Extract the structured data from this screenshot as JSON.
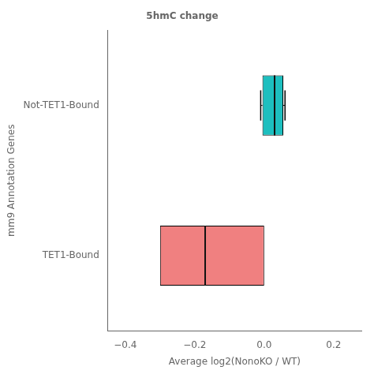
{
  "chart_data": {
    "type": "box",
    "orientation": "horizontal",
    "title": "5hmC change",
    "xlabel": "Average log2(NonoKO / WT)",
    "ylabel": "mm9 Annotation Genes",
    "categories": [
      "TET1-Bound",
      "Not-TET1-Bound"
    ],
    "boxes": [
      {
        "low": -0.3,
        "high": 0.0,
        "median": -0.17,
        "color": "#F08080",
        "median_color": "#111111"
      },
      {
        "low": -0.005,
        "high": 0.055,
        "median": 0.03,
        "whisker_low": -0.01,
        "whisker_high": 0.06,
        "color": "#1DBFBF",
        "median_color": "#111111"
      }
    ],
    "xlim": [
      -0.45,
      0.28
    ],
    "xticks": [
      {
        "value": -0.4,
        "label": "−0.4"
      },
      {
        "value": -0.2,
        "label": "−0.2"
      },
      {
        "value": 0.0,
        "label": "0.0"
      },
      {
        "value": 0.2,
        "label": "0.2"
      }
    ],
    "grid": false
  }
}
